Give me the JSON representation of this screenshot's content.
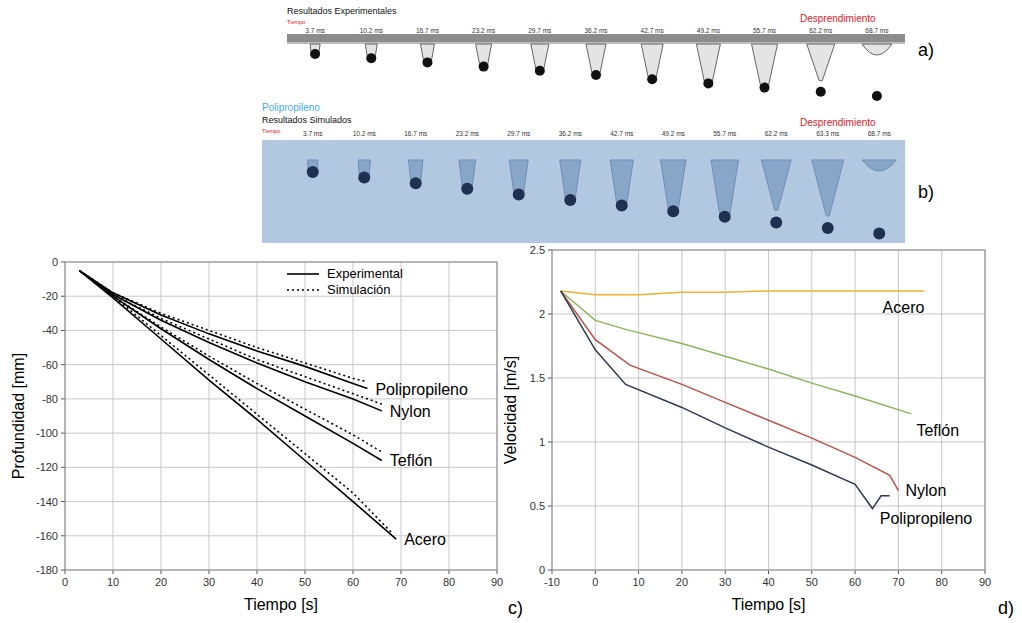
{
  "images": [
    {
      "letter": "a)",
      "title": "Resultados Experimentales",
      "time_caption": "Tiempo:",
      "times": [
        "3.7 ms",
        "10.2 ms",
        "16.7 ms",
        "23.2 ms",
        "29.7 ms",
        "36.2 ms",
        "42.7 ms",
        "49.2 ms",
        "55.7 ms",
        "62.2 ms",
        "68.7 ms"
      ],
      "annotation": "Desprendimiento"
    },
    {
      "letter": "b)",
      "material": "Polipropileno",
      "title": "Resultados Simulados",
      "time_caption": "Tiempo:",
      "times": [
        "3.7 ms",
        "10.2 ms",
        "16.7 ms",
        "23.2 ms",
        "29.7 ms",
        "36.2 ms",
        "42.7 ms",
        "49.2 ms",
        "55.7 ms",
        "62.2 ms",
        "63.3 ms",
        "68.7 ms"
      ],
      "annotation": "Desprendimiento"
    }
  ],
  "chart_data": [
    {
      "letter": "c)",
      "type": "line",
      "x_label": "Tiempo [s]",
      "y_label": "Profundidad [mm]",
      "xlim": [
        0,
        90
      ],
      "xticks": [
        0,
        10,
        20,
        30,
        40,
        50,
        60,
        70,
        80,
        90
      ],
      "ylim": [
        -180,
        0
      ],
      "yticks": [
        -180,
        -160,
        -140,
        -120,
        -100,
        -80,
        -60,
        -40,
        -20,
        0
      ],
      "grid": true,
      "legend": "upper right",
      "legend_entries": [
        {
          "name": "Experimental",
          "line_style": "solid"
        },
        {
          "name": "Simulación",
          "line_style": "dotted"
        }
      ],
      "series": [
        {
          "name": "Polipropileno",
          "color": "#000000",
          "lines": [
            {
              "line_style": "solid",
              "x": [
                3,
                10,
                20,
                30,
                40,
                50,
                60,
                63
              ],
              "values": [
                -5,
                -18,
                -31,
                -42,
                -52,
                -61,
                -71,
                -74
              ]
            },
            {
              "line_style": "dotted",
              "x": [
                3,
                10,
                20,
                30,
                40,
                50,
                60,
                63
              ],
              "values": [
                -5,
                -18,
                -30,
                -40,
                -50,
                -59,
                -68,
                -70
              ]
            }
          ]
        },
        {
          "name": "Nylon",
          "color": "#000000",
          "lines": [
            {
              "line_style": "solid",
              "x": [
                3,
                10,
                20,
                30,
                40,
                50,
                60,
                66
              ],
              "values": [
                -5,
                -19,
                -34,
                -47,
                -59,
                -70,
                -80,
                -87
              ]
            },
            {
              "line_style": "dotted",
              "x": [
                3,
                10,
                20,
                30,
                40,
                50,
                60,
                66
              ],
              "values": [
                -5,
                -19,
                -33,
                -45,
                -57,
                -67,
                -77,
                -83
              ]
            }
          ]
        },
        {
          "name": "Teflón",
          "color": "#000000",
          "lines": [
            {
              "line_style": "solid",
              "x": [
                3,
                10,
                20,
                30,
                40,
                50,
                60,
                66
              ],
              "values": [
                -5,
                -20,
                -39,
                -57,
                -74,
                -90,
                -106,
                -116
              ]
            },
            {
              "line_style": "dotted",
              "x": [
                3,
                10,
                20,
                30,
                40,
                50,
                60,
                66
              ],
              "values": [
                -5,
                -20,
                -38,
                -55,
                -71,
                -86,
                -101,
                -111
              ]
            }
          ]
        },
        {
          "name": "Acero",
          "color": "#000000",
          "lines": [
            {
              "line_style": "solid",
              "x": [
                3,
                10,
                20,
                30,
                40,
                50,
                60,
                69
              ],
              "values": [
                -5,
                -21,
                -45,
                -69,
                -92,
                -116,
                -140,
                -162
              ]
            },
            {
              "line_style": "dotted",
              "x": [
                3,
                10,
                20,
                30,
                40,
                50,
                60,
                68
              ],
              "values": [
                -5,
                -20,
                -43,
                -66,
                -89,
                -112,
                -135,
                -158
              ]
            }
          ]
        }
      ]
    },
    {
      "letter": "d)",
      "type": "line",
      "x_label": "Tiempo [s]",
      "y_label": "Velocidad [m/s]",
      "xlim": [
        -10,
        90
      ],
      "xticks": [
        -10,
        0,
        10,
        20,
        30,
        40,
        50,
        60,
        70,
        80,
        90
      ],
      "ylim": [
        0,
        2.5
      ],
      "yticks": [
        0,
        0.5,
        1,
        1.5,
        2,
        2.5
      ],
      "grid": true,
      "series": [
        {
          "name": "Acero",
          "color": "#f0b030",
          "x": [
            -8,
            0,
            10,
            20,
            30,
            40,
            50,
            60,
            70,
            76
          ],
          "values": [
            2.18,
            2.15,
            2.15,
            2.17,
            2.17,
            2.18,
            2.18,
            2.18,
            2.18,
            2.18
          ]
        },
        {
          "name": "Teflón",
          "color": "#8db45a",
          "x": [
            -8,
            0,
            7,
            20,
            30,
            40,
            50,
            60,
            73
          ],
          "values": [
            2.18,
            1.95,
            1.88,
            1.77,
            1.67,
            1.57,
            1.46,
            1.36,
            1.22
          ]
        },
        {
          "name": "Nylon",
          "color": "#c0504d",
          "x": [
            -8,
            0,
            8,
            20,
            30,
            40,
            50,
            60,
            68,
            70
          ],
          "values": [
            2.18,
            1.8,
            1.6,
            1.45,
            1.31,
            1.17,
            1.03,
            0.88,
            0.74,
            0.62
          ]
        },
        {
          "name": "Polipropileno",
          "color": "#2e3b4e",
          "x": [
            -8,
            0,
            7,
            20,
            30,
            40,
            50,
            60,
            64,
            66,
            68
          ],
          "values": [
            2.18,
            1.72,
            1.45,
            1.27,
            1.11,
            0.96,
            0.82,
            0.67,
            0.48,
            0.58,
            0.58
          ]
        }
      ]
    }
  ]
}
